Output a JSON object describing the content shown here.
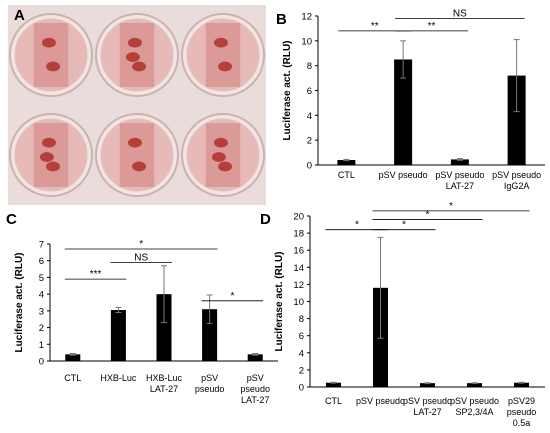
{
  "panels": {
    "A": "A",
    "B": "B",
    "C": "C",
    "D": "D"
  },
  "photo": {
    "plate_color": "#e9d7d6",
    "stain_color": "#b5403a",
    "well_count": 6
  },
  "chart_data": [
    {
      "panel": "B",
      "type": "bar",
      "title": "",
      "xlabel": "",
      "ylabel": "Luciferase act. (RLU)",
      "ylim": [
        0,
        12
      ],
      "yticks": [
        0,
        2,
        4,
        6,
        8,
        10,
        12
      ],
      "categories": [
        [
          "CTL"
        ],
        [
          "pSV pseudo"
        ],
        [
          "pSV pseudo",
          "LAT-27"
        ],
        [
          "pSV pseudo",
          "IgG2A"
        ]
      ],
      "values": [
        0.4,
        8.5,
        0.45,
        7.2
      ],
      "errors": [
        0.05,
        1.5,
        0.07,
        2.9
      ],
      "significance": [
        {
          "from": 0,
          "to": 1,
          "label": "**",
          "level": 10.8
        },
        {
          "from": 1,
          "to": 2,
          "label": "**",
          "level": 10.8
        },
        {
          "from": 1,
          "to": 3,
          "label": "NS",
          "level": 11.8
        }
      ],
      "grid": false,
      "bar_color": "#000000"
    },
    {
      "panel": "C",
      "type": "bar",
      "title": "",
      "xlabel": "",
      "ylabel": "Luciferase act. (RLU)",
      "ylim": [
        0,
        7
      ],
      "yticks": [
        0,
        1,
        2,
        3,
        4,
        5,
        6,
        7
      ],
      "categories": [
        [
          "CTL"
        ],
        [
          "HXB-Luc"
        ],
        [
          "HXB-Luc",
          "LAT-27"
        ],
        [
          "pSV",
          "pseudo"
        ],
        [
          "pSV",
          "pseudo",
          "LAT-27"
        ]
      ],
      "values": [
        0.4,
        3.05,
        4.0,
        3.1,
        0.4
      ],
      "errors": [
        0.05,
        0.15,
        1.7,
        0.85,
        0.05
      ],
      "significance": [
        {
          "from": 0,
          "to": 1,
          "label": "***",
          "level": 4.9
        },
        {
          "from": 1,
          "to": 2,
          "label": "NS",
          "level": 5.9
        },
        {
          "from": 0,
          "to": 3,
          "label": "*",
          "level": 6.7
        },
        {
          "from": 3,
          "to": 4,
          "label": "*",
          "level": 3.6
        }
      ],
      "grid": false,
      "bar_color": "#000000"
    },
    {
      "panel": "D",
      "type": "bar",
      "title": "",
      "xlabel": "",
      "ylabel": "Luciferase act. (RLU)",
      "ylim": [
        0,
        20
      ],
      "yticks": [
        0,
        2,
        4,
        6,
        8,
        10,
        12,
        14,
        16,
        18,
        20
      ],
      "categories": [
        [
          "CTL"
        ],
        [
          "pSV pseudo"
        ],
        [
          "pSV pseudo",
          "LAT-27"
        ],
        [
          "pSV pseudo",
          "SP2,3/4A"
        ],
        [
          "pSV29",
          "pseudo",
          "0.5a"
        ]
      ],
      "values": [
        0.5,
        11.6,
        0.45,
        0.45,
        0.5
      ],
      "errors": [
        0.05,
        5.9,
        0.05,
        0.05,
        0.05
      ],
      "significance": [
        {
          "from": 0,
          "to": 1,
          "label": "*",
          "level": 18.4
        },
        {
          "from": 1,
          "to": 2,
          "label": "*",
          "level": 18.4
        },
        {
          "from": 1,
          "to": 3,
          "label": "*",
          "level": 19.6
        },
        {
          "from": 1,
          "to": 4,
          "label": "*",
          "level": 20.6
        }
      ],
      "grid": false,
      "bar_color": "#000000"
    }
  ]
}
